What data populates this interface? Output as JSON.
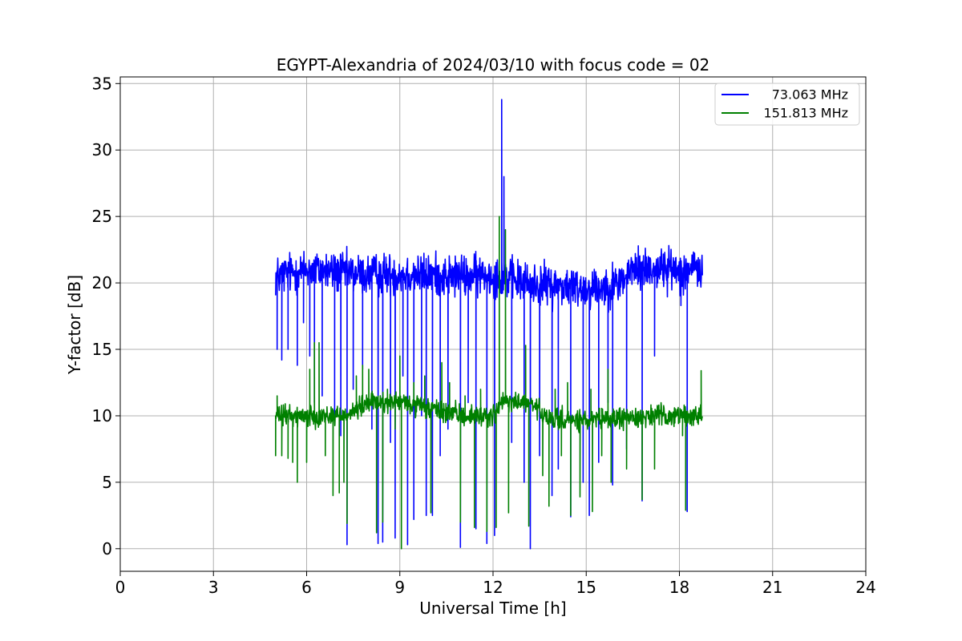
{
  "chart_data": {
    "type": "line",
    "title": "EGYPT-Alexandria of 2024/03/10 with focus code = 02",
    "xlabel": "Universal Time [h]",
    "ylabel": "Y-factor [dB]",
    "xlim": [
      0,
      24
    ],
    "ylim": [
      -1.7,
      35.5
    ],
    "xticks": [
      0,
      3,
      6,
      9,
      12,
      15,
      18,
      21,
      24
    ],
    "yticks": [
      0,
      5,
      10,
      15,
      20,
      25,
      30,
      35
    ],
    "grid": true,
    "legend_position": "top-right",
    "series": [
      {
        "name": "73.063 MHz",
        "color": "#0000ff",
        "x_range": [
          5.0,
          18.75
        ],
        "baseline": [
          [
            5.0,
            20.5
          ],
          [
            6.0,
            21.0
          ],
          [
            7.0,
            20.8
          ],
          [
            8.0,
            20.6
          ],
          [
            9.0,
            20.7
          ],
          [
            10.0,
            20.6
          ],
          [
            11.0,
            20.5
          ],
          [
            12.0,
            20.6
          ],
          [
            12.5,
            20.4
          ],
          [
            13.0,
            20.0
          ],
          [
            14.0,
            19.8
          ],
          [
            15.0,
            19.6
          ],
          [
            16.0,
            19.9
          ],
          [
            16.5,
            21.0
          ],
          [
            17.0,
            21.1
          ],
          [
            18.0,
            21.0
          ],
          [
            18.75,
            21.0
          ]
        ],
        "noise_amplitude": 1.2,
        "spikes": [
          {
            "x": 5.05,
            "y": 15.0
          },
          {
            "x": 5.2,
            "y": 14.2
          },
          {
            "x": 5.4,
            "y": 15.0
          },
          {
            "x": 5.7,
            "y": 13.8
          },
          {
            "x": 5.9,
            "y": 17.0
          },
          {
            "x": 6.1,
            "y": 14.5
          },
          {
            "x": 6.25,
            "y": 11.0
          },
          {
            "x": 6.5,
            "y": 11.5
          },
          {
            "x": 6.9,
            "y": 10.0
          },
          {
            "x": 7.1,
            "y": 8.5
          },
          {
            "x": 7.3,
            "y": 0.3
          },
          {
            "x": 7.5,
            "y": 12.0
          },
          {
            "x": 7.8,
            "y": 13.5
          },
          {
            "x": 8.1,
            "y": 9.0
          },
          {
            "x": 8.3,
            "y": 0.4
          },
          {
            "x": 8.45,
            "y": 0.5
          },
          {
            "x": 8.7,
            "y": 8.0
          },
          {
            "x": 8.85,
            "y": 0.8
          },
          {
            "x": 9.1,
            "y": 13.0
          },
          {
            "x": 9.25,
            "y": 0.3
          },
          {
            "x": 9.45,
            "y": 2.2
          },
          {
            "x": 9.7,
            "y": 10.0
          },
          {
            "x": 9.85,
            "y": 2.5
          },
          {
            "x": 10.05,
            "y": 2.5
          },
          {
            "x": 10.3,
            "y": 7.0
          },
          {
            "x": 10.55,
            "y": 9.0
          },
          {
            "x": 10.95,
            "y": 0.1
          },
          {
            "x": 11.2,
            "y": 11.0
          },
          {
            "x": 11.45,
            "y": 1.5
          },
          {
            "x": 11.8,
            "y": 0.4
          },
          {
            "x": 12.05,
            "y": 1.0
          },
          {
            "x": 12.28,
            "y": 33.8
          },
          {
            "x": 12.35,
            "y": 28.0
          },
          {
            "x": 12.6,
            "y": 8.0
          },
          {
            "x": 13.0,
            "y": 5.0
          },
          {
            "x": 13.2,
            "y": 0.0
          },
          {
            "x": 13.5,
            "y": 7.0
          },
          {
            "x": 13.9,
            "y": 4.0
          },
          {
            "x": 14.1,
            "y": 6.0
          },
          {
            "x": 14.5,
            "y": 2.4
          },
          {
            "x": 14.9,
            "y": 5.0
          },
          {
            "x": 15.1,
            "y": 2.5
          },
          {
            "x": 15.4,
            "y": 6.5
          },
          {
            "x": 15.7,
            "y": 11.0
          },
          {
            "x": 15.85,
            "y": 4.8
          },
          {
            "x": 16.3,
            "y": 7.5
          },
          {
            "x": 16.8,
            "y": 3.6
          },
          {
            "x": 17.2,
            "y": 14.5
          },
          {
            "x": 18.05,
            "y": 18.3
          },
          {
            "x": 18.25,
            "y": 2.8
          }
        ]
      },
      {
        "name": "151.813 MHz",
        "color": "#008000",
        "x_range": [
          5.0,
          18.75
        ],
        "baseline": [
          [
            5.0,
            10.0
          ],
          [
            6.0,
            10.0
          ],
          [
            7.0,
            10.0
          ],
          [
            7.5,
            10.3
          ],
          [
            8.0,
            11.0
          ],
          [
            9.0,
            11.0
          ],
          [
            10.0,
            10.5
          ],
          [
            11.0,
            10.0
          ],
          [
            12.0,
            10.0
          ],
          [
            12.3,
            11.0
          ],
          [
            13.0,
            11.0
          ],
          [
            13.5,
            10.5
          ],
          [
            13.6,
            9.8
          ],
          [
            15.0,
            9.6
          ],
          [
            16.0,
            9.8
          ],
          [
            17.0,
            10.0
          ],
          [
            18.0,
            10.0
          ],
          [
            18.75,
            10.0
          ]
        ],
        "noise_amplitude": 0.6,
        "spikes": [
          {
            "x": 5.0,
            "y": 7.0
          },
          {
            "x": 5.05,
            "y": 11.5
          },
          {
            "x": 5.2,
            "y": 7.0
          },
          {
            "x": 5.4,
            "y": 6.8
          },
          {
            "x": 5.55,
            "y": 6.5
          },
          {
            "x": 5.7,
            "y": 5.0
          },
          {
            "x": 6.0,
            "y": 6.5
          },
          {
            "x": 6.1,
            "y": 13.5
          },
          {
            "x": 6.25,
            "y": 15.5
          },
          {
            "x": 6.4,
            "y": 15.5
          },
          {
            "x": 6.6,
            "y": 7.0
          },
          {
            "x": 6.85,
            "y": 4.0
          },
          {
            "x": 7.05,
            "y": 4.2
          },
          {
            "x": 7.2,
            "y": 5.0
          },
          {
            "x": 7.3,
            "y": 1.9
          },
          {
            "x": 7.6,
            "y": 13.0
          },
          {
            "x": 7.8,
            "y": 13.8
          },
          {
            "x": 8.0,
            "y": 13.5
          },
          {
            "x": 8.25,
            "y": 1.2
          },
          {
            "x": 8.45,
            "y": 2.0
          },
          {
            "x": 8.6,
            "y": 12.0
          },
          {
            "x": 8.85,
            "y": 9.0
          },
          {
            "x": 9.0,
            "y": 14.5
          },
          {
            "x": 9.05,
            "y": 0.0
          },
          {
            "x": 9.3,
            "y": 11.0
          },
          {
            "x": 9.45,
            "y": 12.5
          },
          {
            "x": 9.8,
            "y": 13.0
          },
          {
            "x": 10.0,
            "y": 2.7
          },
          {
            "x": 10.35,
            "y": 14.0
          },
          {
            "x": 10.6,
            "y": 12.5
          },
          {
            "x": 10.95,
            "y": 2.0
          },
          {
            "x": 11.1,
            "y": 11.5
          },
          {
            "x": 11.4,
            "y": 1.6
          },
          {
            "x": 11.6,
            "y": 12.0
          },
          {
            "x": 11.8,
            "y": 1.3
          },
          {
            "x": 12.1,
            "y": 1.6
          },
          {
            "x": 12.2,
            "y": 25.0
          },
          {
            "x": 12.4,
            "y": 24.0
          },
          {
            "x": 12.5,
            "y": 2.7
          },
          {
            "x": 12.8,
            "y": 11.5
          },
          {
            "x": 13.05,
            "y": 15.3
          },
          {
            "x": 13.15,
            "y": 1.7
          },
          {
            "x": 13.6,
            "y": 5.5
          },
          {
            "x": 13.8,
            "y": 3.2
          },
          {
            "x": 14.0,
            "y": 12.0
          },
          {
            "x": 14.2,
            "y": 7.0
          },
          {
            "x": 14.4,
            "y": 12.5
          },
          {
            "x": 14.5,
            "y": 2.5
          },
          {
            "x": 14.8,
            "y": 3.9
          },
          {
            "x": 15.15,
            "y": 12.0
          },
          {
            "x": 15.2,
            "y": 2.8
          },
          {
            "x": 15.5,
            "y": 7.0
          },
          {
            "x": 15.7,
            "y": 13.5
          },
          {
            "x": 15.8,
            "y": 5.0
          },
          {
            "x": 16.3,
            "y": 6.0
          },
          {
            "x": 16.8,
            "y": 3.7
          },
          {
            "x": 17.2,
            "y": 6.0
          },
          {
            "x": 18.1,
            "y": 8.5
          },
          {
            "x": 18.2,
            "y": 2.9
          },
          {
            "x": 18.7,
            "y": 13.4
          }
        ]
      }
    ]
  }
}
